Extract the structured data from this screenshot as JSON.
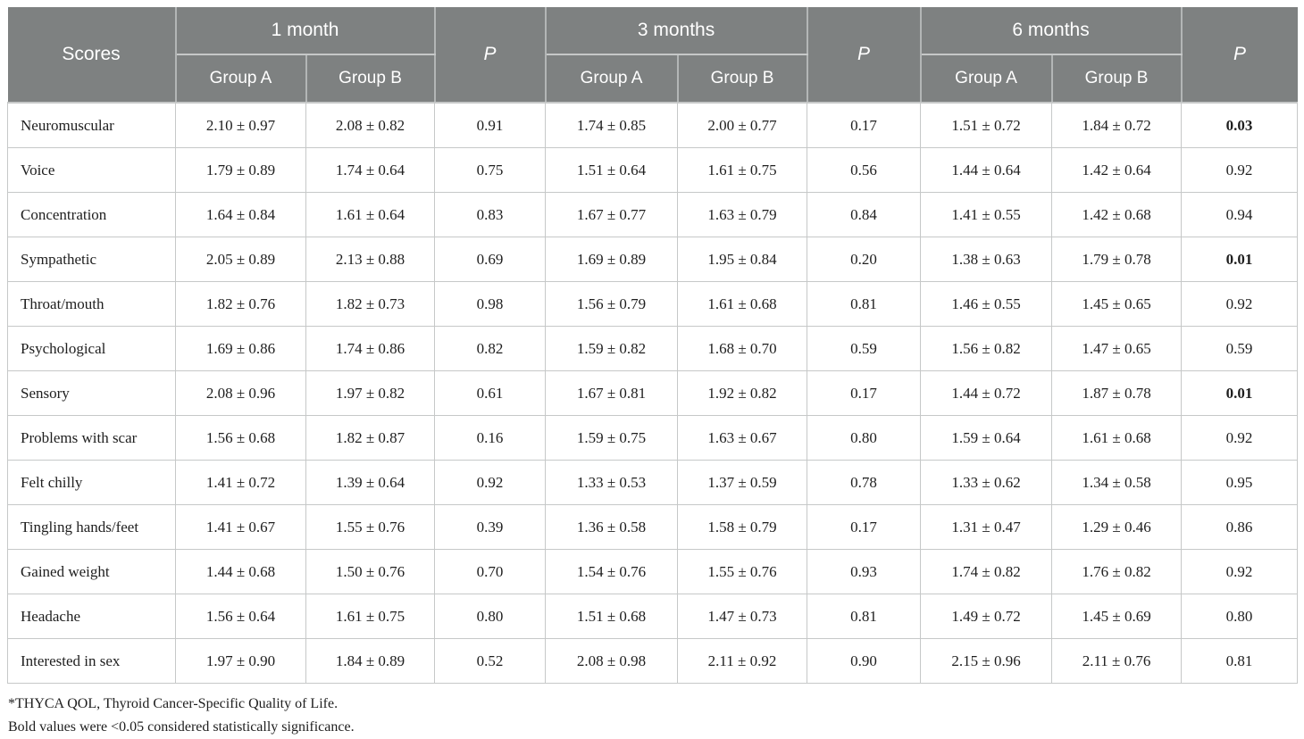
{
  "table": {
    "header": {
      "scores": "Scores",
      "month1": "1 month",
      "month3": "3 months",
      "month6": "6 months",
      "p": "P",
      "group_a": "Group A",
      "group_b": "Group B"
    },
    "rows": [
      {
        "label": "Neuromuscular",
        "m1_a": "2.10 ± 0.97",
        "m1_b": "2.08 ± 0.82",
        "p1": "0.91",
        "m3_a": "1.74 ± 0.85",
        "m3_b": "2.00 ± 0.77",
        "p3": "0.17",
        "m6_a": "1.51 ± 0.72",
        "m6_b": "1.84 ± 0.72",
        "p6": "0.03",
        "p6_bold": true
      },
      {
        "label": "Voice",
        "m1_a": "1.79 ± 0.89",
        "m1_b": "1.74 ± 0.64",
        "p1": "0.75",
        "m3_a": "1.51 ± 0.64",
        "m3_b": "1.61 ± 0.75",
        "p3": "0.56",
        "m6_a": "1.44 ± 0.64",
        "m6_b": "1.42 ± 0.64",
        "p6": "0.92",
        "p6_bold": false
      },
      {
        "label": "Concentration",
        "m1_a": "1.64 ± 0.84",
        "m1_b": "1.61 ± 0.64",
        "p1": "0.83",
        "m3_a": "1.67 ± 0.77",
        "m3_b": "1.63 ± 0.79",
        "p3": "0.84",
        "m6_a": "1.41 ± 0.55",
        "m6_b": "1.42 ± 0.68",
        "p6": "0.94",
        "p6_bold": false
      },
      {
        "label": "Sympathetic",
        "m1_a": "2.05 ± 0.89",
        "m1_b": "2.13 ± 0.88",
        "p1": "0.69",
        "m3_a": "1.69 ± 0.89",
        "m3_b": "1.95 ± 0.84",
        "p3": "0.20",
        "m6_a": "1.38 ± 0.63",
        "m6_b": "1.79 ± 0.78",
        "p6": "0.01",
        "p6_bold": true
      },
      {
        "label": "Throat/mouth",
        "m1_a": "1.82 ± 0.76",
        "m1_b": "1.82 ± 0.73",
        "p1": "0.98",
        "m3_a": "1.56 ± 0.79",
        "m3_b": "1.61 ± 0.68",
        "p3": "0.81",
        "m6_a": "1.46 ± 0.55",
        "m6_b": "1.45 ± 0.65",
        "p6": "0.92",
        "p6_bold": false
      },
      {
        "label": "Psychological",
        "m1_a": "1.69 ± 0.86",
        "m1_b": "1.74 ± 0.86",
        "p1": "0.82",
        "m3_a": "1.59 ± 0.82",
        "m3_b": "1.68 ± 0.70",
        "p3": "0.59",
        "m6_a": "1.56 ± 0.82",
        "m6_b": "1.47 ± 0.65",
        "p6": "0.59",
        "p6_bold": false
      },
      {
        "label": "Sensory",
        "m1_a": "2.08 ± 0.96",
        "m1_b": "1.97 ± 0.82",
        "p1": "0.61",
        "m3_a": "1.67 ± 0.81",
        "m3_b": "1.92 ± 0.82",
        "p3": "0.17",
        "m6_a": "1.44 ± 0.72",
        "m6_b": "1.87 ± 0.78",
        "p6": "0.01",
        "p6_bold": true
      },
      {
        "label": "Problems with scar",
        "m1_a": "1.56 ± 0.68",
        "m1_b": "1.82 ± 0.87",
        "p1": "0.16",
        "m3_a": "1.59 ± 0.75",
        "m3_b": "1.63 ± 0.67",
        "p3": "0.80",
        "m6_a": "1.59 ± 0.64",
        "m6_b": "1.61 ± 0.68",
        "p6": "0.92",
        "p6_bold": false
      },
      {
        "label": "Felt chilly",
        "m1_a": "1.41 ± 0.72",
        "m1_b": "1.39 ± 0.64",
        "p1": "0.92",
        "m3_a": "1.33 ± 0.53",
        "m3_b": "1.37 ± 0.59",
        "p3": "0.78",
        "m6_a": "1.33 ± 0.62",
        "m6_b": "1.34 ± 0.58",
        "p6": "0.95",
        "p6_bold": false
      },
      {
        "label": "Tingling hands/feet",
        "m1_a": "1.41 ± 0.67",
        "m1_b": "1.55 ± 0.76",
        "p1": "0.39",
        "m3_a": "1.36 ± 0.58",
        "m3_b": "1.58 ± 0.79",
        "p3": "0.17",
        "m6_a": "1.31 ± 0.47",
        "m6_b": "1.29 ± 0.46",
        "p6": "0.86",
        "p6_bold": false
      },
      {
        "label": "Gained weight",
        "m1_a": "1.44 ± 0.68",
        "m1_b": "1.50 ± 0.76",
        "p1": "0.70",
        "m3_a": "1.54 ± 0.76",
        "m3_b": "1.55 ± 0.76",
        "p3": "0.93",
        "m6_a": "1.74 ± 0.82",
        "m6_b": "1.76 ± 0.82",
        "p6": "0.92",
        "p6_bold": false
      },
      {
        "label": "Headache",
        "m1_a": "1.56 ± 0.64",
        "m1_b": "1.61 ± 0.75",
        "p1": "0.80",
        "m3_a": "1.51 ± 0.68",
        "m3_b": "1.47 ± 0.73",
        "p3": "0.81",
        "m6_a": "1.49 ± 0.72",
        "m6_b": "1.45 ± 0.69",
        "p6": "0.80",
        "p6_bold": false
      },
      {
        "label": "Interested in sex",
        "m1_a": "1.97 ± 0.90",
        "m1_b": "1.84 ± 0.89",
        "p1": "0.52",
        "m3_a": "2.08 ± 0.98",
        "m3_b": "2.11 ± 0.92",
        "p3": "0.90",
        "m6_a": "2.15 ± 0.96",
        "m6_b": "2.11 ± 0.76",
        "p6": "0.81",
        "p6_bold": false
      }
    ]
  },
  "footnotes": {
    "line1": "*THYCA QOL, Thyroid Cancer-Specific Quality of Life.",
    "line2": "Bold values were <0.05 considered statistically significance."
  },
  "colors": {
    "header_bg": "#7e8181",
    "header_divider": "#b3b6b6",
    "body_border": "#c6c8c8",
    "text": "#1e1e1e"
  }
}
